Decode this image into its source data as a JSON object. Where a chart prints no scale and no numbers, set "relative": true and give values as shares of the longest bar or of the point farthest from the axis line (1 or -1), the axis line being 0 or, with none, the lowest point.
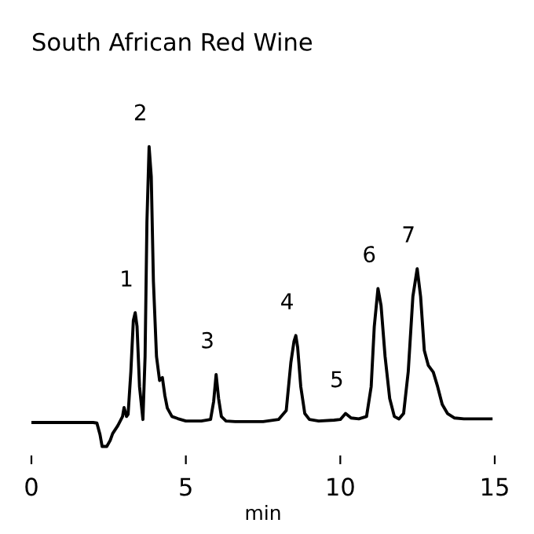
{
  "chart_data": {
    "type": "line",
    "title": "South African Red Wine",
    "xlabel": "min",
    "relative": true,
    "xlim": [
      0,
      15
    ],
    "xticks": [
      0,
      5,
      10,
      15
    ],
    "series": [
      {
        "color": "#000000",
        "x": [
          0,
          1.0,
          2.0,
          2.12,
          2.22,
          2.29,
          2.44,
          2.55,
          2.63,
          2.8,
          2.95,
          3.0,
          3.08,
          3.13,
          3.22,
          3.3,
          3.36,
          3.42,
          3.5,
          3.61,
          3.68,
          3.74,
          3.81,
          3.88,
          3.95,
          4.05,
          4.15,
          4.24,
          4.32,
          4.4,
          4.55,
          4.74,
          5.0,
          5.5,
          5.8,
          5.9,
          5.98,
          6.06,
          6.15,
          6.3,
          6.6,
          7.0,
          7.5,
          8.0,
          8.25,
          8.4,
          8.5,
          8.56,
          8.62,
          8.72,
          8.85,
          9.0,
          9.3,
          9.8,
          10.0,
          10.17,
          10.35,
          10.6,
          10.85,
          11.0,
          11.1,
          11.22,
          11.32,
          11.45,
          11.6,
          11.75,
          11.9,
          12.05,
          12.2,
          12.35,
          12.49,
          12.6,
          12.72,
          12.85,
          13.01,
          13.15,
          13.3,
          13.47,
          13.7,
          14.0,
          14.5,
          14.88
        ],
        "values": [
          0.08,
          0.08,
          0.08,
          0.078,
          0.04,
          0.0,
          0.0,
          0.02,
          0.043,
          0.07,
          0.1,
          0.13,
          0.1,
          0.107,
          0.25,
          0.42,
          0.446,
          0.4,
          0.2,
          0.09,
          0.3,
          0.75,
          1.0,
          0.9,
          0.55,
          0.3,
          0.22,
          0.23,
          0.17,
          0.128,
          0.1,
          0.093,
          0.085,
          0.085,
          0.09,
          0.15,
          0.24,
          0.16,
          0.1,
          0.085,
          0.083,
          0.083,
          0.083,
          0.09,
          0.12,
          0.28,
          0.35,
          0.37,
          0.33,
          0.2,
          0.11,
          0.09,
          0.085,
          0.088,
          0.09,
          0.11,
          0.095,
          0.092,
          0.1,
          0.2,
          0.4,
          0.527,
          0.47,
          0.3,
          0.16,
          0.1,
          0.092,
          0.11,
          0.25,
          0.5,
          0.593,
          0.5,
          0.32,
          0.27,
          0.248,
          0.2,
          0.14,
          0.11,
          0.095,
          0.092,
          0.092,
          0.092
        ]
      }
    ],
    "annotations": [
      {
        "text": "1",
        "x": 3.36,
        "y": 0.446
      },
      {
        "text": "2",
        "x": 3.81,
        "y": 1.0
      },
      {
        "text": "3",
        "x": 5.98,
        "y": 0.24
      },
      {
        "text": "4",
        "x": 8.56,
        "y": 0.37
      },
      {
        "text": "5",
        "x": 10.17,
        "y": 0.11
      },
      {
        "text": "6",
        "x": 11.22,
        "y": 0.527
      },
      {
        "text": "7",
        "x": 12.49,
        "y": 0.593
      }
    ]
  }
}
